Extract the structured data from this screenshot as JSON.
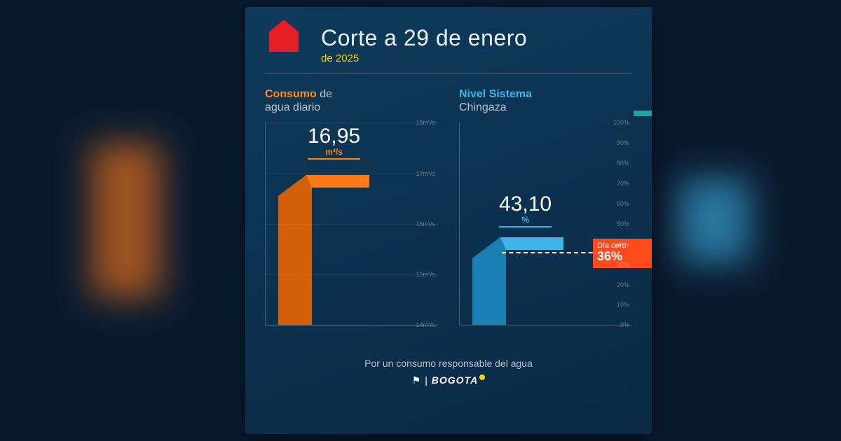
{
  "header": {
    "title": "Corte a 29 de enero",
    "subtitle": "de 2025"
  },
  "consumo": {
    "title_accent": "Consumo",
    "title_rest": " de",
    "title_line2": "agua diario",
    "value": "16,95",
    "unit": "m³/s",
    "ticks": [
      "18m³/s",
      "17m³/s",
      "16m³/s",
      "15m³/s",
      "14m³/s"
    ],
    "bar_color": "#ff7a1a",
    "bar_dark": "#d45f0a",
    "value_top_pct": 1,
    "bar_height_pct": 73.8
  },
  "nivel": {
    "title_accent": "Nivel Sistema",
    "title_line2": "Chingaza",
    "value": "43,10",
    "unit": "%",
    "ticks": [
      "100%",
      "90%",
      "80%",
      "70%",
      "60%",
      "50%",
      "40%",
      "30%",
      "20%",
      "10%",
      "0%"
    ],
    "bar_color": "#3eb4e8",
    "bar_dark": "#1a7fb3",
    "bar_height_pct": 43.1,
    "day_zero_label": "Día cero",
    "day_zero_value": "36%",
    "day_zero_pos_pct": 36
  },
  "footer": {
    "tagline": "Por un consumo responsable del agua",
    "brand": "BOGOTA"
  },
  "colors": {
    "card_bg": "#0f3a5a",
    "accent_orange": "#ff7a1a",
    "accent_blue": "#3eb4e8",
    "danger": "#ff4a1a"
  }
}
